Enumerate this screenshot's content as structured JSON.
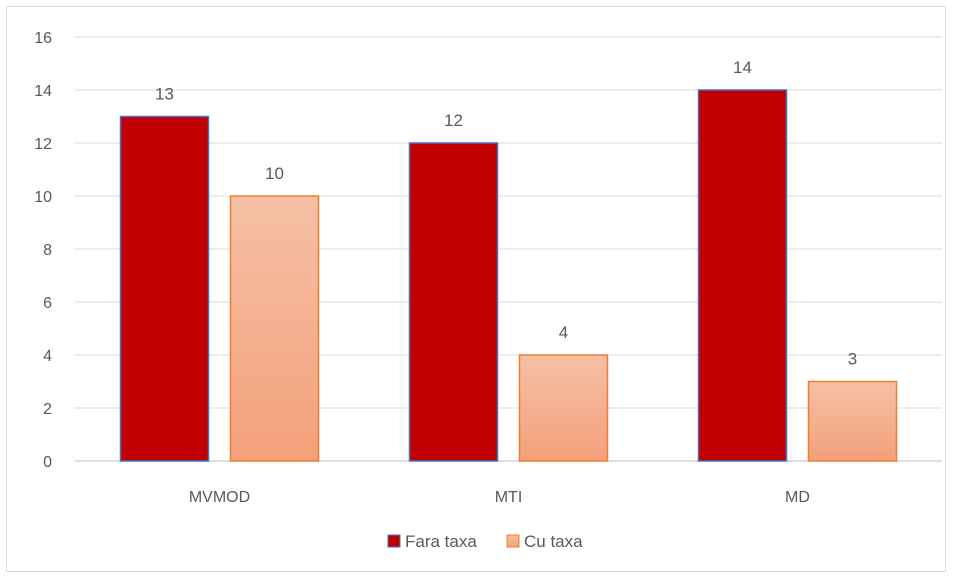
{
  "chart_data": {
    "type": "bar",
    "title": "",
    "xlabel": "",
    "ylabel": "",
    "categories": [
      "MVMOD",
      "MTI",
      "MD"
    ],
    "series": [
      {
        "name": "Fara taxa",
        "values": [
          13,
          12,
          14
        ],
        "color": "#c00000",
        "stroke": "#4472c4"
      },
      {
        "name": "Cu taxa",
        "values": [
          10,
          4,
          3
        ],
        "color_top": "#f5c0a6",
        "color_bottom": "#f4a07a",
        "stroke": "#ed7d31"
      }
    ],
    "ylim": [
      0,
      16
    ],
    "yticks": [
      "0",
      "2",
      "4",
      "6",
      "8",
      "10",
      "12",
      "14",
      "16"
    ],
    "grid": true,
    "legend_position": "bottom-center",
    "data_labels": true
  }
}
